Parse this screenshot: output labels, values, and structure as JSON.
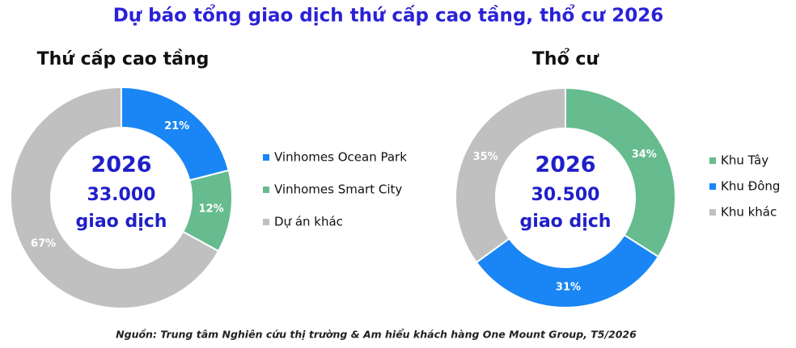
{
  "title": "Dự báo tổng giao dịch thứ cấp cao tầng, thổ cư 2026",
  "source": "Nguồn: Trung tâm Nghiên cứu thị trường & Am hiểu khách hàng One Mount Group, T5/2026",
  "chart_data": [
    {
      "type": "donut",
      "title": "Thứ cấp cao tầng",
      "center_labels": [
        "2026",
        "33.000",
        "giao dịch"
      ],
      "categories": [
        "Vinhomes Ocean Park",
        "Vinhomes Smart City",
        "Dự án khác"
      ],
      "values": [
        21,
        12,
        67
      ],
      "value_labels": [
        "21%",
        "12%",
        "67%"
      ],
      "colors": [
        "#1a86f5",
        "#66bb8f",
        "#c0c0c0"
      ]
    },
    {
      "type": "donut",
      "title": "Thổ cư",
      "center_labels": [
        "2026",
        "30.500",
        "giao dịch"
      ],
      "categories": [
        "Khu Tây",
        "Khu Đông",
        "Khu khác"
      ],
      "values": [
        34,
        31,
        35
      ],
      "value_labels": [
        "34%",
        "31%",
        "35%"
      ],
      "colors": [
        "#66bb8f",
        "#1a86f5",
        "#c0c0c0"
      ]
    }
  ]
}
